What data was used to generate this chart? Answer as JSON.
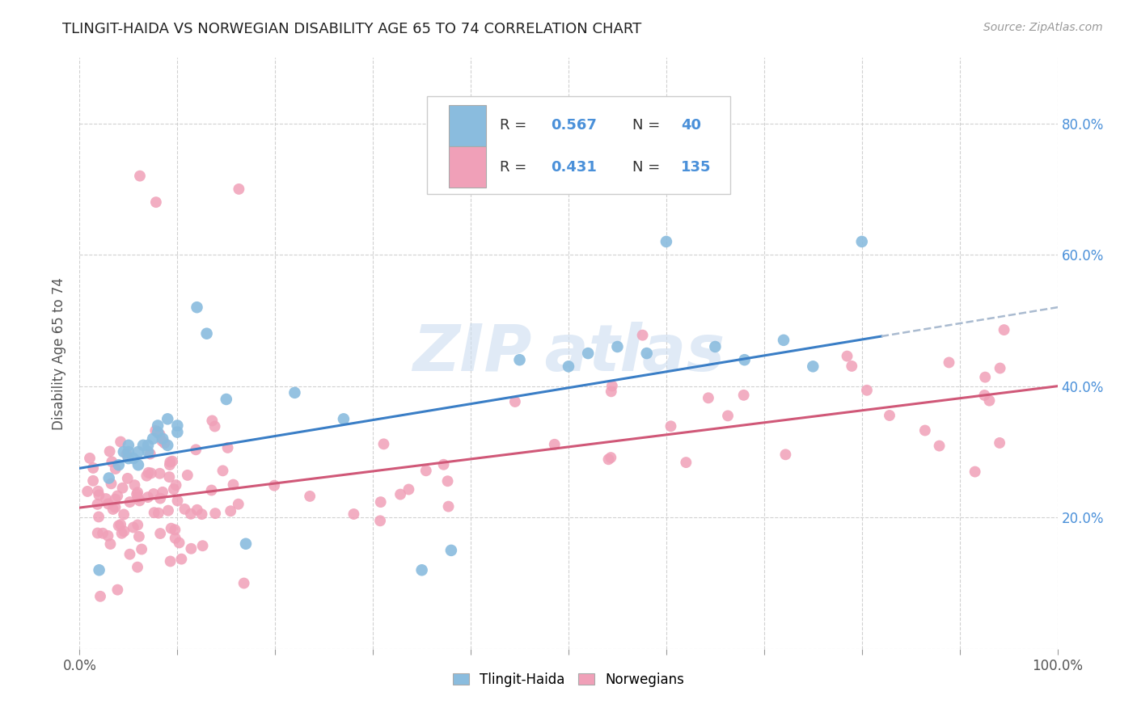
{
  "title": "TLINGIT-HAIDA VS NORWEGIAN DISABILITY AGE 65 TO 74 CORRELATION CHART",
  "source": "Source: ZipAtlas.com",
  "ylabel": "Disability Age 65 to 74",
  "tlingit_color": "#8abcde",
  "norwegian_color": "#f0a0b8",
  "tlingit_line_color": "#3a7ec6",
  "norwegian_line_color": "#d05878",
  "tlingit_R": 0.567,
  "tlingit_N": 40,
  "norwegian_R": 0.431,
  "norwegian_N": 135,
  "background_color": "#ffffff",
  "grid_color": "#cccccc",
  "right_tick_color": "#4a90d9",
  "left_tick_color": "#555555",
  "bottom_tick_color": "#555555",
  "watermark_color": "#ccddf0"
}
